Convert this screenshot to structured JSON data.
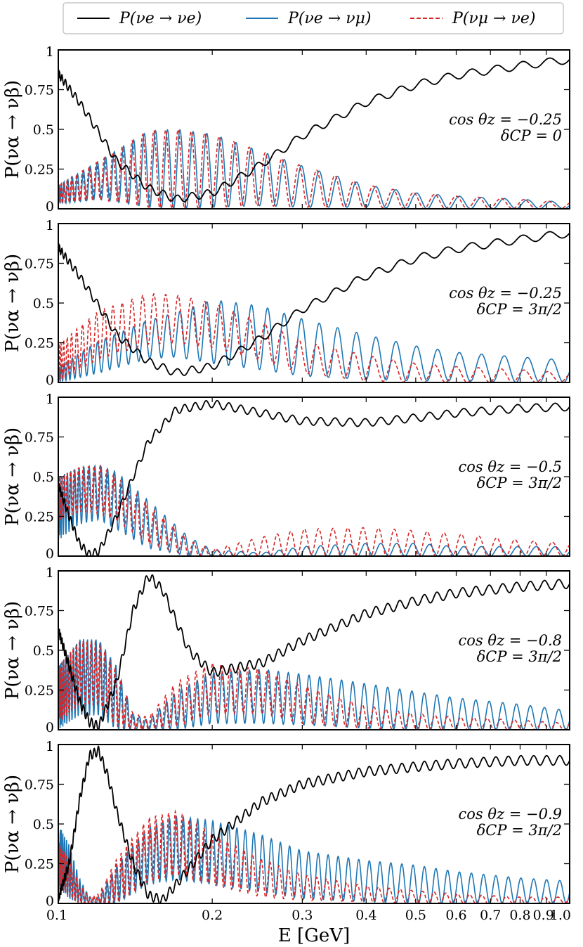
{
  "colors": {
    "p_ee": "#000000",
    "p_emu": "#1f77b4",
    "p_mue": "#d62728"
  },
  "legend": [
    {
      "key": "p_ee",
      "label": "P(νe → νe)",
      "style": "solid"
    },
    {
      "key": "p_emu",
      "label": "P(νe → νμ)",
      "style": "solid"
    },
    {
      "key": "p_mue",
      "label": "P(νμ → νe)",
      "style": "dashed"
    }
  ],
  "chart_data": [
    {
      "type": "line",
      "ylabel": "P(να → νβ)",
      "ylim": [
        0,
        1
      ],
      "yticks": [
        {
          "v": 0,
          "label": "0"
        },
        {
          "v": 0.25,
          "label": "0.25"
        },
        {
          "v": 0.5,
          "label": "0.5"
        },
        {
          "v": 0.75,
          "label": "0.75"
        },
        {
          "v": 1,
          "label": "1"
        }
      ],
      "annotation": [
        "cos θz = −0.25",
        "δCP = 0"
      ],
      "series": [
        {
          "key": "p_ee",
          "name": "P(νe → νe)",
          "x": [
            0.1,
            0.11,
            0.12,
            0.13,
            0.15,
            0.17,
            0.2,
            0.25,
            0.3,
            0.4,
            0.5,
            0.6,
            0.8,
            1.0
          ],
          "y": [
            0.85,
            0.67,
            0.48,
            0.3,
            0.13,
            0.06,
            0.1,
            0.28,
            0.46,
            0.67,
            0.78,
            0.84,
            0.9,
            0.94
          ],
          "wiggle": 0.025,
          "cycles": 34
        },
        {
          "key": "p_emu",
          "name": "P(νe → νμ)",
          "x": [
            0.1,
            0.12,
            0.15,
            0.17,
            0.2,
            0.25,
            0.3,
            0.4,
            0.5,
            0.6,
            0.8,
            1.0
          ],
          "y": [
            0.09,
            0.18,
            0.25,
            0.25,
            0.24,
            0.19,
            0.14,
            0.08,
            0.05,
            0.04,
            0.03,
            0.02
          ],
          "amp": [
            0.06,
            0.12,
            0.24,
            0.25,
            0.23,
            0.17,
            0.13,
            0.07,
            0.05,
            0.04,
            0.03,
            0.02
          ],
          "cycles": 38
        },
        {
          "key": "p_mue",
          "name": "P(νμ → νe)",
          "x": [
            0.1,
            0.12,
            0.15,
            0.17,
            0.2,
            0.25,
            0.3,
            0.4,
            0.5,
            0.6,
            0.8,
            1.0
          ],
          "y": [
            0.09,
            0.18,
            0.25,
            0.25,
            0.24,
            0.19,
            0.14,
            0.08,
            0.05,
            0.04,
            0.03,
            0.02
          ],
          "amp": [
            0.06,
            0.12,
            0.24,
            0.25,
            0.23,
            0.17,
            0.13,
            0.07,
            0.05,
            0.04,
            0.03,
            0.02
          ],
          "cycles": 38
        }
      ]
    },
    {
      "type": "line",
      "ylabel": "P(να → νβ)",
      "ylim": [
        0,
        1
      ],
      "yticks": [
        {
          "v": 0,
          "label": "0"
        },
        {
          "v": 0.25,
          "label": "0.25"
        },
        {
          "v": 0.5,
          "label": "0.5"
        },
        {
          "v": 0.75,
          "label": "0.75"
        },
        {
          "v": 1,
          "label": "1"
        }
      ],
      "annotation": [
        "cos θz = −0.25",
        "δCP = 3π/2"
      ],
      "series": [
        {
          "key": "p_ee",
          "name": "P(νe → νe)",
          "x": [
            0.1,
            0.11,
            0.12,
            0.13,
            0.15,
            0.17,
            0.2,
            0.25,
            0.3,
            0.4,
            0.5,
            0.6,
            0.8,
            1.0
          ],
          "y": [
            0.85,
            0.67,
            0.48,
            0.3,
            0.13,
            0.06,
            0.1,
            0.28,
            0.46,
            0.67,
            0.78,
            0.84,
            0.9,
            0.94
          ],
          "wiggle": 0.025,
          "cycles": 34
        },
        {
          "key": "p_emu",
          "name": "P(νe → νμ)",
          "x": [
            0.1,
            0.12,
            0.15,
            0.17,
            0.2,
            0.25,
            0.3,
            0.4,
            0.5,
            0.6,
            0.8,
            1.0
          ],
          "y": [
            0.05,
            0.16,
            0.27,
            0.3,
            0.32,
            0.28,
            0.22,
            0.16,
            0.12,
            0.1,
            0.08,
            0.07
          ],
          "amp": [
            0.05,
            0.1,
            0.12,
            0.14,
            0.2,
            0.2,
            0.18,
            0.14,
            0.11,
            0.09,
            0.08,
            0.07
          ],
          "cycles": 38
        },
        {
          "key": "p_mue",
          "name": "P(νμ → νe)",
          "x": [
            0.1,
            0.12,
            0.15,
            0.17,
            0.2,
            0.25,
            0.3,
            0.4,
            0.5,
            0.6,
            0.8,
            1.0
          ],
          "y": [
            0.12,
            0.3,
            0.4,
            0.4,
            0.36,
            0.26,
            0.16,
            0.09,
            0.06,
            0.05,
            0.04,
            0.03
          ],
          "amp": [
            0.12,
            0.15,
            0.16,
            0.15,
            0.14,
            0.12,
            0.1,
            0.08,
            0.06,
            0.05,
            0.04,
            0.03
          ],
          "cycles": 38
        }
      ]
    },
    {
      "type": "line",
      "ylabel": "P(να → νβ)",
      "ylim": [
        0,
        1
      ],
      "yticks": [
        {
          "v": 0,
          "label": "0"
        },
        {
          "v": 0.25,
          "label": "0.25"
        },
        {
          "v": 0.5,
          "label": "0.5"
        },
        {
          "v": 0.75,
          "label": "0.75"
        },
        {
          "v": 1,
          "label": "1"
        }
      ],
      "annotation": [
        "cos θz = −0.5",
        "δCP = 3π/2"
      ],
      "series": [
        {
          "key": "p_ee",
          "name": "P(νe → νe)",
          "x": [
            0.1,
            0.105,
            0.11,
            0.115,
            0.12,
            0.13,
            0.14,
            0.15,
            0.17,
            0.2,
            0.25,
            0.3,
            0.4,
            0.5,
            0.6,
            0.8,
            1.0
          ],
          "y": [
            0.45,
            0.25,
            0.08,
            0.01,
            0.03,
            0.25,
            0.5,
            0.72,
            0.92,
            0.96,
            0.9,
            0.85,
            0.84,
            0.87,
            0.9,
            0.93,
            0.94
          ],
          "wiggle": 0.025,
          "cycles": 48
        },
        {
          "key": "p_emu",
          "name": "P(νe → νμ)",
          "x": [
            0.1,
            0.11,
            0.12,
            0.13,
            0.15,
            0.18,
            0.2,
            0.25,
            0.3,
            0.4,
            0.5,
            0.6,
            0.8,
            1.0
          ],
          "y": [
            0.3,
            0.38,
            0.4,
            0.35,
            0.2,
            0.06,
            0.02,
            0.01,
            0.03,
            0.04,
            0.04,
            0.03,
            0.03,
            0.03
          ],
          "amp": [
            0.2,
            0.18,
            0.17,
            0.18,
            0.15,
            0.06,
            0.02,
            0.01,
            0.03,
            0.04,
            0.04,
            0.03,
            0.03,
            0.03
          ],
          "cycles": 48
        },
        {
          "key": "p_mue",
          "name": "P(νμ → νe)",
          "x": [
            0.1,
            0.11,
            0.12,
            0.13,
            0.15,
            0.18,
            0.2,
            0.25,
            0.3,
            0.4,
            0.5,
            0.6,
            0.8,
            1.0
          ],
          "y": [
            0.36,
            0.42,
            0.42,
            0.36,
            0.2,
            0.05,
            0.02,
            0.06,
            0.09,
            0.09,
            0.08,
            0.07,
            0.05,
            0.04
          ],
          "amp": [
            0.14,
            0.14,
            0.15,
            0.14,
            0.12,
            0.05,
            0.02,
            0.06,
            0.08,
            0.09,
            0.08,
            0.07,
            0.05,
            0.04
          ],
          "cycles": 48
        }
      ]
    },
    {
      "type": "line",
      "ylabel": "P(να → νβ)",
      "ylim": [
        0,
        1
      ],
      "yticks": [
        {
          "v": 0,
          "label": "0"
        },
        {
          "v": 0.25,
          "label": "0.25"
        },
        {
          "v": 0.5,
          "label": "0.5"
        },
        {
          "v": 0.75,
          "label": "0.75"
        },
        {
          "v": 1,
          "label": "1"
        }
      ],
      "annotation": [
        "cos θz = −0.8",
        "δCP = 3π/2"
      ],
      "series": [
        {
          "key": "p_ee",
          "name": "P(νe → νe)",
          "x": [
            0.1,
            0.105,
            0.11,
            0.115,
            0.12,
            0.13,
            0.14,
            0.15,
            0.16,
            0.18,
            0.2,
            0.25,
            0.3,
            0.4,
            0.5,
            0.6,
            0.8,
            1.0
          ],
          "y": [
            0.63,
            0.4,
            0.18,
            0.05,
            0.02,
            0.3,
            0.75,
            0.97,
            0.88,
            0.5,
            0.36,
            0.42,
            0.56,
            0.73,
            0.81,
            0.86,
            0.9,
            0.92
          ],
          "wiggle": 0.03,
          "cycles": 64
        },
        {
          "key": "p_emu",
          "name": "P(νe → νμ)",
          "x": [
            0.1,
            0.11,
            0.12,
            0.13,
            0.14,
            0.15,
            0.17,
            0.2,
            0.25,
            0.3,
            0.4,
            0.5,
            0.6,
            0.8,
            1.0
          ],
          "y": [
            0.2,
            0.33,
            0.33,
            0.2,
            0.05,
            0.03,
            0.12,
            0.2,
            0.21,
            0.19,
            0.15,
            0.12,
            0.1,
            0.08,
            0.06
          ],
          "amp": [
            0.2,
            0.24,
            0.24,
            0.2,
            0.05,
            0.03,
            0.12,
            0.16,
            0.17,
            0.16,
            0.14,
            0.12,
            0.1,
            0.08,
            0.06
          ],
          "cycles": 64
        },
        {
          "key": "p_mue",
          "name": "P(νμ → νe)",
          "x": [
            0.1,
            0.11,
            0.12,
            0.13,
            0.14,
            0.15,
            0.17,
            0.2,
            0.25,
            0.3,
            0.4,
            0.5,
            0.6,
            0.8,
            1.0
          ],
          "y": [
            0.22,
            0.36,
            0.35,
            0.2,
            0.05,
            0.04,
            0.16,
            0.26,
            0.24,
            0.16,
            0.08,
            0.05,
            0.04,
            0.03,
            0.02
          ],
          "amp": [
            0.18,
            0.2,
            0.2,
            0.18,
            0.05,
            0.04,
            0.14,
            0.16,
            0.14,
            0.12,
            0.07,
            0.05,
            0.04,
            0.03,
            0.02
          ],
          "cycles": 64
        }
      ]
    },
    {
      "type": "line",
      "ylabel": "P(να → νβ)",
      "ylim": [
        0,
        1
      ],
      "yticks": [
        {
          "v": 0,
          "label": "0"
        },
        {
          "v": 0.25,
          "label": "0.25"
        },
        {
          "v": 0.5,
          "label": "0.5"
        },
        {
          "v": 0.75,
          "label": "0.75"
        },
        {
          "v": 1,
          "label": "1"
        }
      ],
      "annotation": [
        "cos θz = −0.9",
        "δCP = 3π/2"
      ],
      "series": [
        {
          "key": "p_ee",
          "name": "P(νe → νe)",
          "x": [
            0.1,
            0.105,
            0.11,
            0.115,
            0.12,
            0.125,
            0.13,
            0.14,
            0.15,
            0.16,
            0.17,
            0.2,
            0.25,
            0.3,
            0.4,
            0.5,
            0.6,
            0.8,
            1.0
          ],
          "y": [
            0.03,
            0.25,
            0.65,
            0.93,
            0.96,
            0.8,
            0.58,
            0.25,
            0.05,
            0.02,
            0.12,
            0.4,
            0.64,
            0.75,
            0.83,
            0.86,
            0.88,
            0.9,
            0.9
          ],
          "wiggle": 0.03,
          "cycles": 70
        },
        {
          "key": "p_emu",
          "name": "P(νe → νμ)",
          "x": [
            0.1,
            0.105,
            0.11,
            0.115,
            0.12,
            0.13,
            0.15,
            0.17,
            0.2,
            0.25,
            0.3,
            0.4,
            0.5,
            0.6,
            0.8,
            1.0
          ],
          "y": [
            0.3,
            0.2,
            0.08,
            0.02,
            0.02,
            0.12,
            0.3,
            0.35,
            0.32,
            0.25,
            0.18,
            0.14,
            0.12,
            0.1,
            0.08,
            0.07
          ],
          "amp": [
            0.2,
            0.17,
            0.08,
            0.02,
            0.02,
            0.12,
            0.18,
            0.2,
            0.2,
            0.18,
            0.15,
            0.13,
            0.12,
            0.1,
            0.08,
            0.07
          ],
          "cycles": 70
        },
        {
          "key": "p_mue",
          "name": "P(νμ → νe)",
          "x": [
            0.1,
            0.105,
            0.11,
            0.115,
            0.12,
            0.13,
            0.15,
            0.17,
            0.2,
            0.25,
            0.3,
            0.4,
            0.5,
            0.6,
            0.8,
            1.0
          ],
          "y": [
            0.25,
            0.16,
            0.06,
            0.02,
            0.03,
            0.14,
            0.34,
            0.38,
            0.28,
            0.16,
            0.1,
            0.06,
            0.04,
            0.03,
            0.02,
            0.02
          ],
          "amp": [
            0.14,
            0.12,
            0.06,
            0.02,
            0.03,
            0.14,
            0.2,
            0.2,
            0.16,
            0.12,
            0.08,
            0.05,
            0.04,
            0.03,
            0.02,
            0.02
          ],
          "cycles": 70
        }
      ]
    }
  ],
  "xaxis": {
    "label": "E [GeV]",
    "scale": "log",
    "range": [
      0.1,
      1.0
    ],
    "ticks": [
      {
        "v": 0.1,
        "label": "0.1"
      },
      {
        "v": 0.2,
        "label": "0.2"
      },
      {
        "v": 0.3,
        "label": "0.3"
      },
      {
        "v": 0.4,
        "label": "0.4"
      },
      {
        "v": 0.5,
        "label": "0.5"
      },
      {
        "v": 0.6,
        "label": "0.6"
      },
      {
        "v": 0.7,
        "label": "0.7"
      },
      {
        "v": 0.8,
        "label": "0.8"
      },
      {
        "v": 0.9,
        "label": "0.9"
      },
      {
        "v": 1.0,
        "label": "1.0"
      }
    ]
  }
}
